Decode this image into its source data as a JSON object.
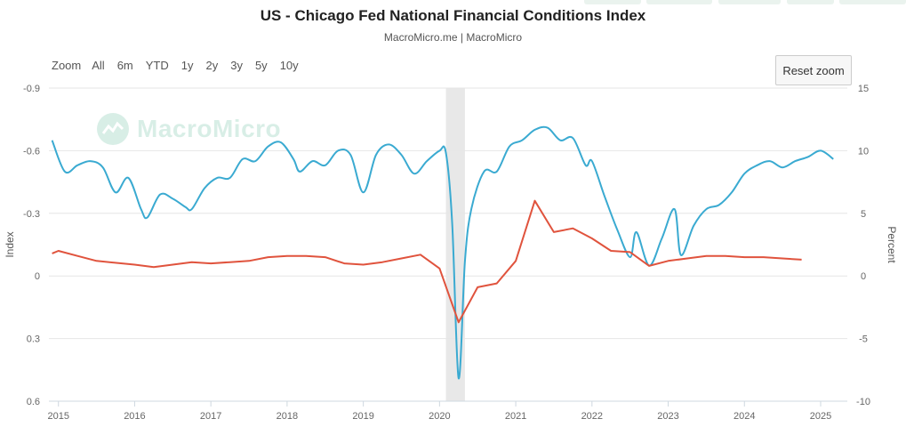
{
  "title": "US - Chicago Fed National Financial Conditions Index",
  "subtitle": "MacroMicro.me | MacroMicro",
  "watermark": "MacroMicro",
  "range_selector": {
    "zoom_label": "Zoom",
    "buttons": [
      "All",
      "6m",
      "YTD",
      "1y",
      "2y",
      "3y",
      "5y",
      "10y"
    ]
  },
  "reset_zoom_label": "Reset zoom",
  "colors": {
    "index_line": "#3aaad1",
    "percent_line": "#e0533d",
    "recession_band": "#e8e8e8"
  },
  "chart_data": {
    "type": "line",
    "xlabel": "",
    "x_ticks": [
      "2015",
      "2016",
      "2017",
      "2018",
      "2019",
      "2020",
      "2021",
      "2022",
      "2023",
      "2024",
      "2025"
    ],
    "y_left": {
      "label": "Index",
      "range": [
        -0.9,
        0.6
      ],
      "reversed": true,
      "ticks": [
        "-0.9",
        "-0.6",
        "-0.3",
        "0",
        "0.3",
        "0.6"
      ]
    },
    "y_right": {
      "label": "Percent",
      "range": [
        -10,
        15
      ],
      "ticks": [
        "15",
        "10",
        "5",
        "0",
        "-5",
        "-10"
      ]
    },
    "shaded_period": [
      "2020-02",
      "2020-05"
    ],
    "series": [
      {
        "axis": "left",
        "points": [
          [
            "2014-12",
            -0.65
          ],
          [
            "2015-02",
            -0.5
          ],
          [
            "2015-04",
            -0.53
          ],
          [
            "2015-06",
            -0.55
          ],
          [
            "2015-08",
            -0.52
          ],
          [
            "2015-10",
            -0.4
          ],
          [
            "2015-12",
            -0.47
          ],
          [
            "2016-02",
            -0.32
          ],
          [
            "2016-03",
            -0.28
          ],
          [
            "2016-05",
            -0.39
          ],
          [
            "2016-07",
            -0.37
          ],
          [
            "2016-09",
            -0.33
          ],
          [
            "2016-10",
            -0.32
          ],
          [
            "2016-12",
            -0.42
          ],
          [
            "2017-02",
            -0.47
          ],
          [
            "2017-04",
            -0.47
          ],
          [
            "2017-06",
            -0.56
          ],
          [
            "2017-08",
            -0.55
          ],
          [
            "2017-10",
            -0.62
          ],
          [
            "2017-12",
            -0.64
          ],
          [
            "2018-02",
            -0.56
          ],
          [
            "2018-03",
            -0.5
          ],
          [
            "2018-05",
            -0.55
          ],
          [
            "2018-07",
            -0.53
          ],
          [
            "2018-09",
            -0.6
          ],
          [
            "2018-11",
            -0.58
          ],
          [
            "2019-01",
            -0.4
          ],
          [
            "2019-03",
            -0.58
          ],
          [
            "2019-05",
            -0.63
          ],
          [
            "2019-07",
            -0.58
          ],
          [
            "2019-09",
            -0.49
          ],
          [
            "2019-11",
            -0.55
          ],
          [
            "2020-01",
            -0.6
          ],
          [
            "2020-02",
            -0.59
          ],
          [
            "2020-03",
            -0.25
          ],
          [
            "2020-04",
            0.49
          ],
          [
            "2020-05",
            -0.07
          ],
          [
            "2020-06",
            -0.32
          ],
          [
            "2020-08",
            -0.5
          ],
          [
            "2020-10",
            -0.5
          ],
          [
            "2020-12",
            -0.62
          ],
          [
            "2021-02",
            -0.65
          ],
          [
            "2021-04",
            -0.7
          ],
          [
            "2021-06",
            -0.71
          ],
          [
            "2021-08",
            -0.65
          ],
          [
            "2021-10",
            -0.66
          ],
          [
            "2021-12",
            -0.53
          ],
          [
            "2022-01",
            -0.55
          ],
          [
            "2022-03",
            -0.38
          ],
          [
            "2022-05",
            -0.22
          ],
          [
            "2022-07",
            -0.09
          ],
          [
            "2022-08",
            -0.21
          ],
          [
            "2022-10",
            -0.05
          ],
          [
            "2022-12",
            -0.18
          ],
          [
            "2023-02",
            -0.32
          ],
          [
            "2023-03",
            -0.1
          ],
          [
            "2023-05",
            -0.24
          ],
          [
            "2023-07",
            -0.32
          ],
          [
            "2023-09",
            -0.34
          ],
          [
            "2023-11",
            -0.4
          ],
          [
            "2024-01",
            -0.49
          ],
          [
            "2024-03",
            -0.53
          ],
          [
            "2024-05",
            -0.55
          ],
          [
            "2024-07",
            -0.52
          ],
          [
            "2024-09",
            -0.55
          ],
          [
            "2024-11",
            -0.57
          ],
          [
            "2025-01",
            -0.6
          ],
          [
            "2025-03",
            -0.56
          ]
        ]
      },
      {
        "axis": "right",
        "points": [
          [
            "2014-12",
            1.8
          ],
          [
            "2015-01",
            2.0
          ],
          [
            "2015-04",
            1.6
          ],
          [
            "2015-07",
            1.2
          ],
          [
            "2016-01",
            0.9
          ],
          [
            "2016-04",
            0.7
          ],
          [
            "2016-07",
            0.9
          ],
          [
            "2016-10",
            1.1
          ],
          [
            "2017-01",
            1.0
          ],
          [
            "2017-04",
            1.1
          ],
          [
            "2017-07",
            1.2
          ],
          [
            "2017-10",
            1.5
          ],
          [
            "2018-01",
            1.6
          ],
          [
            "2018-04",
            1.6
          ],
          [
            "2018-07",
            1.5
          ],
          [
            "2018-10",
            1.0
          ],
          [
            "2019-01",
            0.9
          ],
          [
            "2019-04",
            1.1
          ],
          [
            "2019-07",
            1.4
          ],
          [
            "2019-10",
            1.7
          ],
          [
            "2020-01",
            0.6
          ],
          [
            "2020-04",
            -3.7
          ],
          [
            "2020-07",
            -0.9
          ],
          [
            "2020-10",
            -0.6
          ],
          [
            "2021-01",
            1.2
          ],
          [
            "2021-04",
            6.0
          ],
          [
            "2021-07",
            3.5
          ],
          [
            "2021-10",
            3.8
          ],
          [
            "2022-01",
            3.0
          ],
          [
            "2022-04",
            2.0
          ],
          [
            "2022-07",
            1.9
          ],
          [
            "2022-10",
            0.8
          ],
          [
            "2023-01",
            1.2
          ],
          [
            "2023-04",
            1.4
          ],
          [
            "2023-07",
            1.6
          ],
          [
            "2023-10",
            1.6
          ],
          [
            "2024-01",
            1.5
          ],
          [
            "2024-04",
            1.5
          ],
          [
            "2024-07",
            1.4
          ],
          [
            "2024-10",
            1.3
          ]
        ]
      }
    ],
    "grid": true
  }
}
